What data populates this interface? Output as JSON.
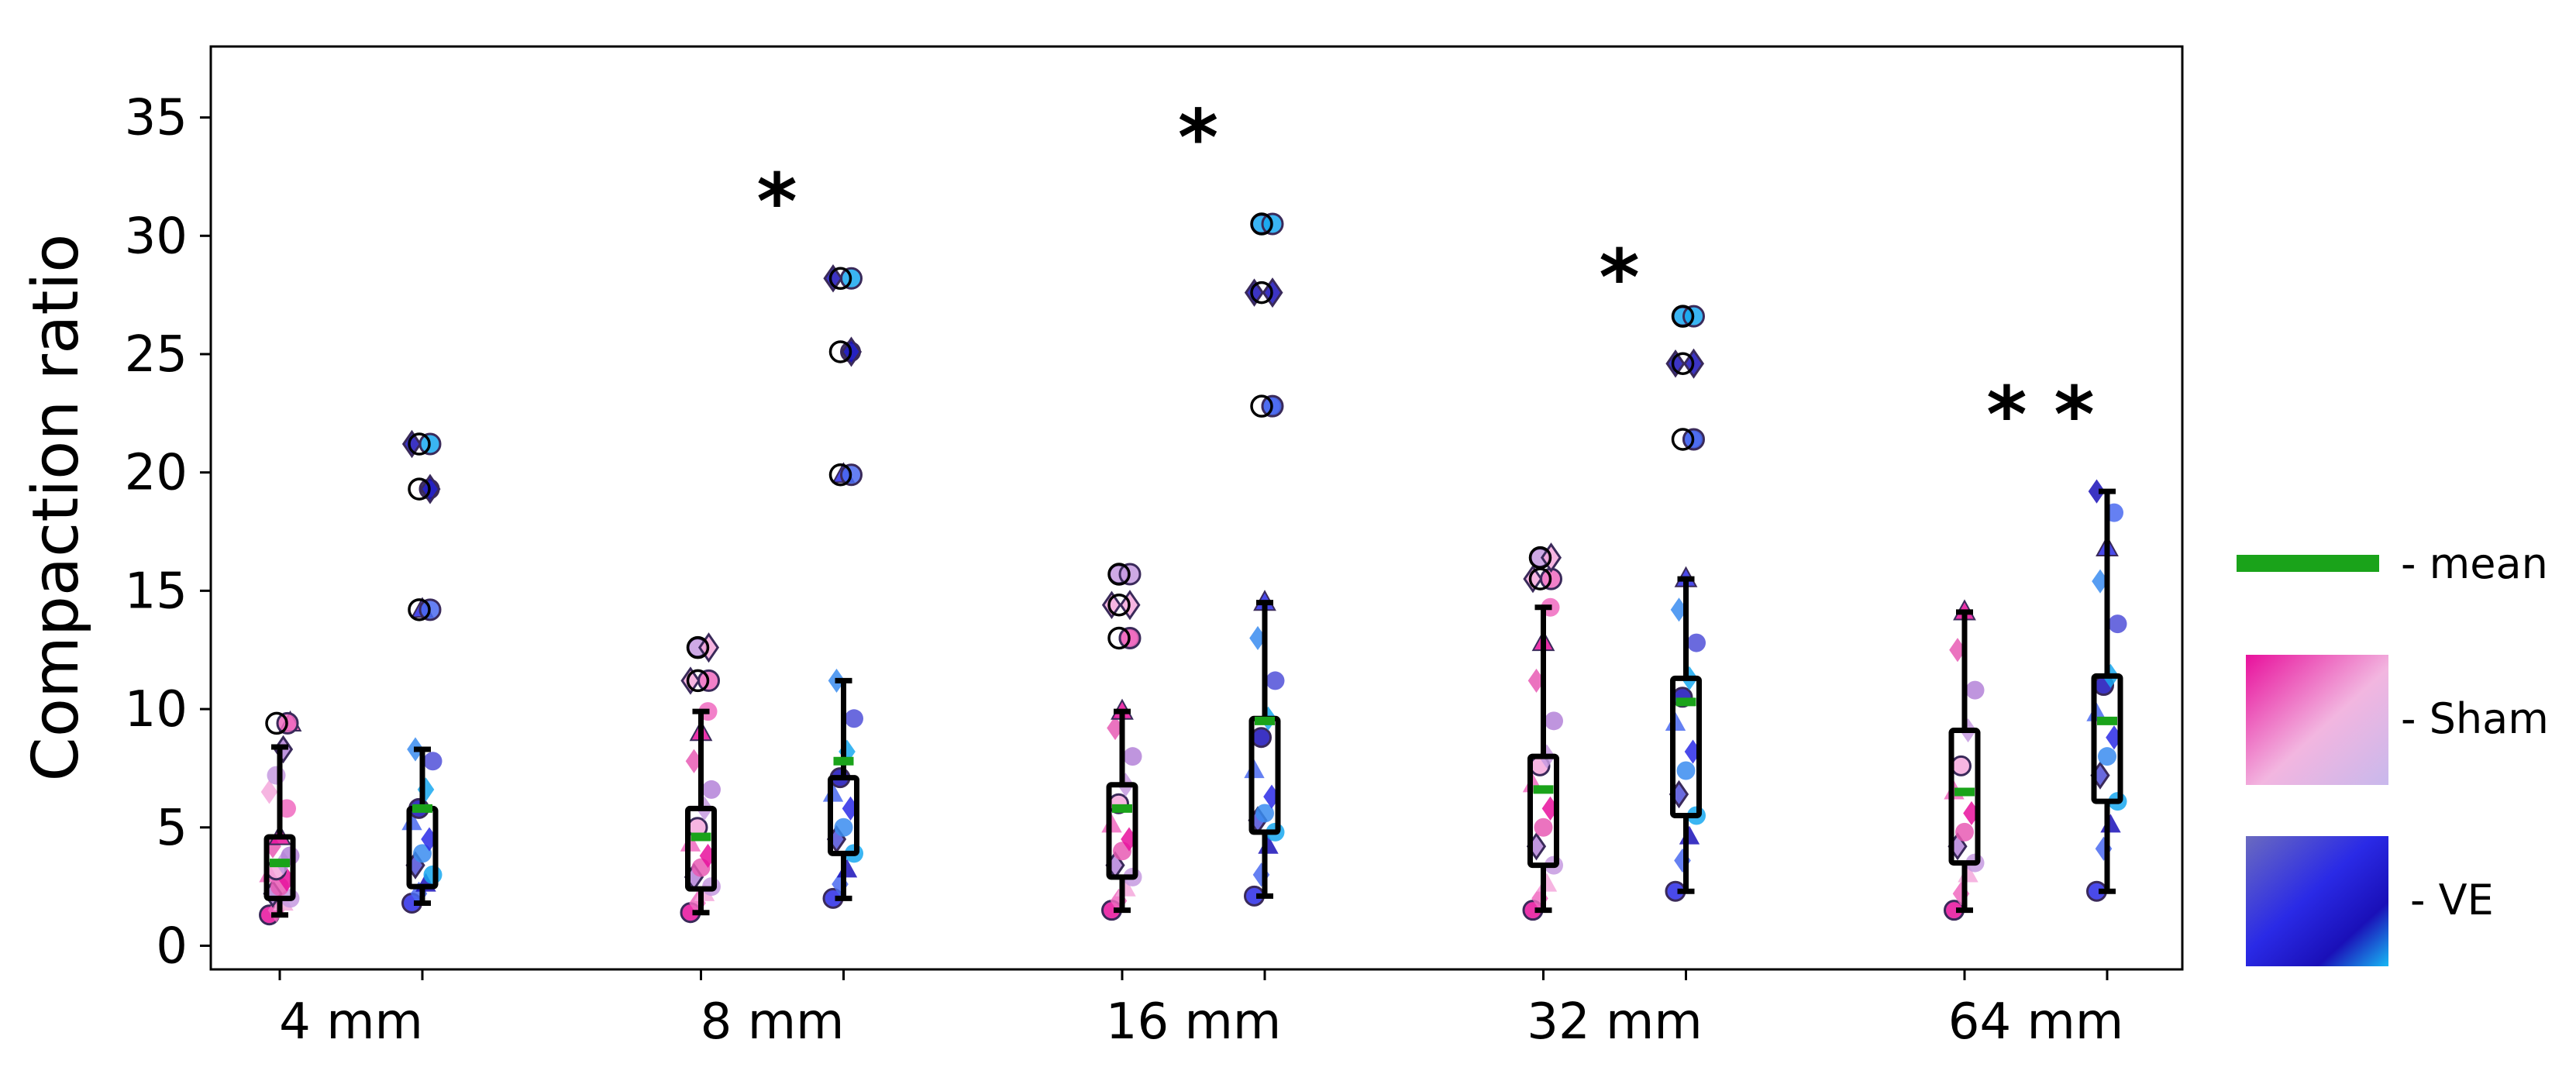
{
  "chart_data": {
    "type": "box",
    "ylabel": "Compaction ratio",
    "xlabel": "",
    "ylim": [
      -1,
      38
    ],
    "yticks": [
      0,
      5,
      10,
      15,
      20,
      25,
      30,
      35
    ],
    "categories": [
      "4 mm",
      "8 mm",
      "16 mm",
      "32 mm",
      "64 mm"
    ],
    "series": [
      {
        "name": "Sham",
        "color": "#e0109a",
        "boxes": [
          {
            "whisker_low": 1.3,
            "q1": 2.0,
            "median": 3.2,
            "q3": 4.6,
            "whisker_high": 8.4,
            "mean": 3.5,
            "outliers": [
              9.4
            ],
            "points": [
              1.3,
              1.5,
              1.8,
              2.0,
              2.2,
              2.5,
              2.8,
              3.0,
              3.2,
              3.5,
              3.8,
              4.2,
              4.6,
              5.8,
              6.5,
              7.2,
              8.3,
              9.4
            ]
          },
          {
            "whisker_low": 1.4,
            "q1": 2.4,
            "median": 3.8,
            "q3": 5.8,
            "whisker_high": 9.9,
            "mean": 4.6,
            "outliers": [
              11.2,
              12.6
            ],
            "points": [
              1.4,
              1.8,
              2.2,
              2.5,
              2.9,
              3.3,
              3.8,
              4.3,
              5.0,
              5.8,
              6.6,
              7.8,
              9.0,
              9.9,
              11.2,
              12.6
            ]
          },
          {
            "whisker_low": 1.5,
            "q1": 2.9,
            "median": 4.5,
            "q3": 6.8,
            "whisker_high": 9.9,
            "mean": 5.8,
            "outliers": [
              13.0,
              14.4,
              15.7
            ],
            "points": [
              1.5,
              1.9,
              2.4,
              2.9,
              3.4,
              4.0,
              4.5,
              5.1,
              6.0,
              6.8,
              8.0,
              9.2,
              9.9,
              13.0,
              14.4,
              15.7
            ]
          },
          {
            "whisker_low": 1.5,
            "q1": 3.4,
            "median": 5.0,
            "q3": 8.0,
            "whisker_high": 14.3,
            "mean": 6.6,
            "outliers": [
              15.5,
              16.4
            ],
            "points": [
              1.5,
              2.0,
              2.6,
              3.4,
              4.2,
              5.0,
              5.8,
              6.8,
              7.6,
              8.0,
              9.5,
              11.2,
              12.8,
              14.3,
              15.5,
              16.4
            ]
          },
          {
            "whisker_low": 1.5,
            "q1": 3.5,
            "median": 5.0,
            "q3": 9.1,
            "whisker_high": 14.1,
            "mean": 6.5,
            "outliers": [],
            "points": [
              1.5,
              2.2,
              3.0,
              3.5,
              4.2,
              4.8,
              5.6,
              6.5,
              7.6,
              9.1,
              10.8,
              12.5,
              14.1
            ]
          }
        ]
      },
      {
        "name": "VE",
        "color": "#2a2ae0",
        "boxes": [
          {
            "whisker_low": 1.8,
            "q1": 2.5,
            "median": 3.4,
            "q3": 5.8,
            "whisker_high": 8.3,
            "mean": 5.8,
            "outliers": [
              14.2,
              19.3,
              21.2
            ],
            "points": [
              1.8,
              2.2,
              2.6,
              3.0,
              3.4,
              3.9,
              4.5,
              5.2,
              5.8,
              6.6,
              7.8,
              8.3,
              14.2,
              19.3,
              21.2
            ]
          },
          {
            "whisker_low": 2.0,
            "q1": 3.9,
            "median": 5.0,
            "q3": 7.1,
            "whisker_high": 11.2,
            "mean": 7.8,
            "outliers": [
              19.9,
              25.1,
              28.2
            ],
            "points": [
              2.0,
              2.6,
              3.2,
              3.9,
              4.5,
              5.0,
              5.8,
              6.4,
              7.1,
              8.2,
              9.6,
              11.2,
              19.9,
              25.1,
              28.2
            ]
          },
          {
            "whisker_low": 2.1,
            "q1": 4.8,
            "median": 5.6,
            "q3": 9.6,
            "whisker_high": 14.5,
            "mean": 9.5,
            "outliers": [
              22.8,
              27.6,
              30.5
            ],
            "points": [
              2.1,
              3.0,
              4.2,
              4.8,
              5.3,
              5.6,
              6.3,
              7.4,
              8.8,
              9.6,
              11.2,
              13.0,
              14.5,
              22.8,
              27.6,
              30.5
            ]
          },
          {
            "whisker_low": 2.3,
            "q1": 5.5,
            "median": 7.4,
            "q3": 11.3,
            "whisker_high": 15.5,
            "mean": 10.3,
            "outliers": [
              21.4,
              24.6,
              26.6
            ],
            "points": [
              2.3,
              3.6,
              4.6,
              5.5,
              6.4,
              7.4,
              8.2,
              9.4,
              10.5,
              11.3,
              12.8,
              14.2,
              15.5,
              21.4,
              24.6,
              26.6
            ]
          },
          {
            "whisker_low": 2.3,
            "q1": 6.1,
            "median": 8.0,
            "q3": 11.4,
            "whisker_high": 19.2,
            "mean": 9.5,
            "outliers": [],
            "points": [
              2.3,
              4.1,
              5.1,
              6.1,
              7.2,
              8.0,
              8.8,
              9.8,
              11.0,
              11.4,
              13.6,
              15.4,
              16.8,
              18.3,
              19.2
            ]
          }
        ]
      }
    ],
    "significance": [
      {
        "category": "8 mm",
        "label": "*",
        "y": 32.2
      },
      {
        "category": "16 mm",
        "label": "*",
        "y": 34.9
      },
      {
        "category": "32 mm",
        "label": "*",
        "y": 29.0
      },
      {
        "category": "64 mm",
        "label": "**",
        "y": 23.2
      }
    ],
    "mean_color": "#1aa31a",
    "legend": [
      {
        "key": "mean",
        "label": "- mean",
        "color": "#1aa31a"
      },
      {
        "key": "sham",
        "label": "- Sham",
        "colors": [
          "#e8109c",
          "#f2b6e0",
          "#c8b8ec"
        ]
      },
      {
        "key": "ve",
        "label": "- VE",
        "colors": [
          "#6a6ac0",
          "#2a2ae6",
          "#1a10b8",
          "#18b8f4"
        ]
      }
    ]
  }
}
